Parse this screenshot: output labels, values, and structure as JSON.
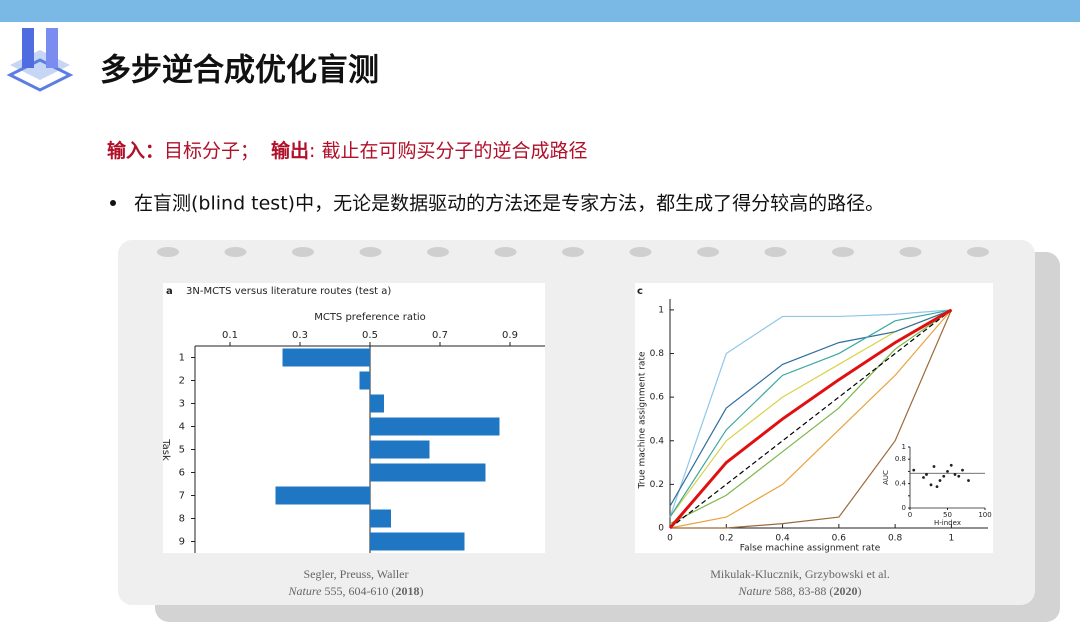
{
  "header": {
    "title": "多步逆合成优化盲测"
  },
  "io": {
    "input_label": "输入：",
    "input_text": "目标分子；",
    "output_label": "输出",
    "output_text": ": 截止在可购买分子的逆合成路径"
  },
  "bullet": "在盲测(blind test)中，无论是数据驱动的方法还是专家方法，都生成了得分较高的路径。",
  "captions": [
    {
      "authors": "Segler, Preuss, Waller",
      "journal": "Nature",
      "ref": " 555, 604-610 (",
      "year": "2018",
      "end": ")"
    },
    {
      "authors": "Mikulak-Klucznik, Grzybowski et al.",
      "journal": "Nature",
      "ref": " 588, 83-88 (",
      "year": "2020",
      "end": ")"
    }
  ],
  "chart_data": [
    {
      "type": "hbar",
      "panel": "a",
      "title": "3N-MCTS versus literature routes (test a)",
      "x_label": "MCTS preference ratio",
      "y_label": "Task",
      "categories": [
        "1",
        "2",
        "3",
        "4",
        "5",
        "6",
        "7",
        "8",
        "9"
      ],
      "values": [
        0.25,
        0.47,
        0.54,
        0.87,
        0.67,
        0.83,
        0.23,
        0.56,
        0.77
      ],
      "baseline": 0.5,
      "color": "#1f77c4",
      "xlim": [
        0,
        1
      ],
      "xticks": [
        0.1,
        0.3,
        0.5,
        0.7,
        0.9
      ]
    },
    {
      "type": "line",
      "panel": "c",
      "x_label": "False machine assignment rate",
      "y_label": "True machine assignment rate",
      "x": [
        0,
        0.2,
        0.4,
        0.6,
        0.8,
        1
      ],
      "xlim": [
        0,
        1.13
      ],
      "ylim": [
        0,
        1.05
      ],
      "xticks": [
        0,
        0.2,
        0.4,
        0.6,
        0.8,
        1
      ],
      "yticks": [
        0,
        0.2,
        0.4,
        0.6,
        0.8,
        1
      ],
      "series": [
        {
          "color": "#8fc7e8",
          "values": [
            0.05,
            0.8,
            0.97,
            0.97,
            0.98,
            1
          ]
        },
        {
          "color": "#e8a33c",
          "values": [
            0,
            0.05,
            0.2,
            0.45,
            0.7,
            1
          ]
        },
        {
          "color": "#7ab648",
          "values": [
            0.02,
            0.15,
            0.35,
            0.55,
            0.82,
            1
          ]
        },
        {
          "color": "#9b6a3a",
          "values": [
            0,
            0,
            0.02,
            0.05,
            0.4,
            1
          ]
        },
        {
          "color": "#d8d34a",
          "values": [
            0.05,
            0.4,
            0.6,
            0.75,
            0.9,
            1
          ]
        },
        {
          "color": "#2f6f9f",
          "values": [
            0.1,
            0.55,
            0.75,
            0.85,
            0.9,
            1
          ]
        },
        {
          "color": "#3aa8a0",
          "values": [
            0.05,
            0.45,
            0.7,
            0.8,
            0.95,
            1
          ]
        },
        {
          "color": "#000000",
          "dashed": true,
          "values": [
            0,
            0.2,
            0.4,
            0.6,
            0.8,
            1
          ]
        },
        {
          "color": "#e01010",
          "width": 3,
          "values": [
            0,
            0.3,
            0.5,
            0.68,
            0.85,
            1
          ]
        }
      ],
      "inset": {
        "type": "scatter",
        "x_label": "H-index",
        "y_label": "AUC",
        "xlim": [
          0,
          100
        ],
        "ylim": [
          0,
          1
        ],
        "xticks": [
          0,
          50,
          100
        ],
        "yticks": [
          0,
          0.2,
          0.4,
          0.6,
          0.8,
          1
        ],
        "x": [
          5,
          18,
          22,
          28,
          32,
          36,
          40,
          45,
          50,
          55,
          60,
          65,
          70,
          78
        ],
        "values": [
          0.62,
          0.5,
          0.55,
          0.38,
          0.68,
          0.35,
          0.45,
          0.52,
          0.6,
          0.7,
          0.55,
          0.52,
          0.62,
          0.45
        ],
        "hline": 0.57
      }
    }
  ]
}
